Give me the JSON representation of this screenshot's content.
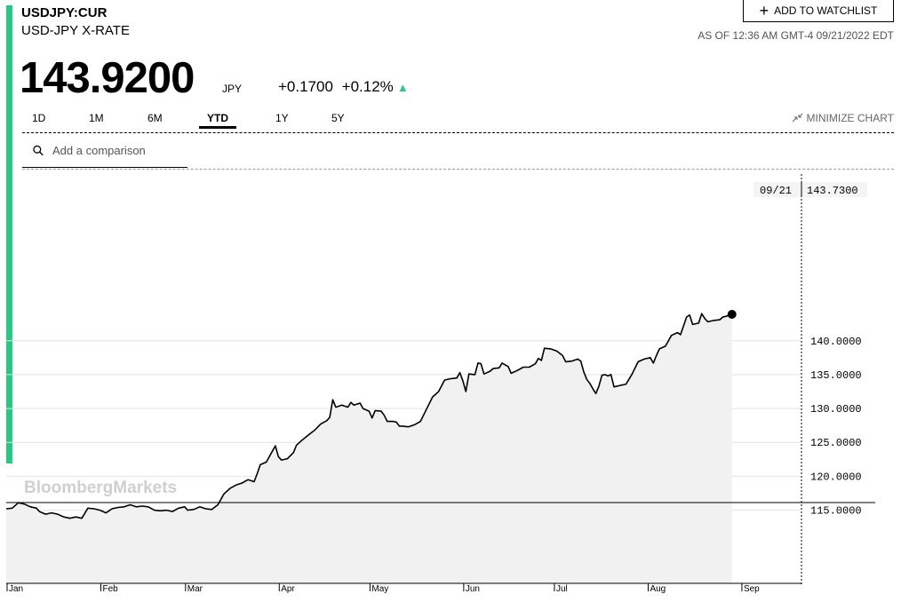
{
  "header": {
    "ticker": "USDJPY:CUR",
    "subtitle": "USD-JPY X-RATE",
    "watchlist_label": "ADD TO WATCHLIST",
    "as_of": "AS OF 12:36 AM GMT-4 09/21/2022 EDT",
    "price": "143.9200",
    "currency": "JPY",
    "change": "+0.1700",
    "change_pct": "+0.12%",
    "up_color": "#2ac686"
  },
  "tabs": [
    {
      "label": "1D"
    },
    {
      "label": "1M"
    },
    {
      "label": "6M"
    },
    {
      "label": "YTD",
      "active": true
    },
    {
      "label": "1Y"
    },
    {
      "label": "5Y"
    }
  ],
  "minimize_label": "MINIMIZE CHART",
  "search": {
    "placeholder": "Add a comparison"
  },
  "chart_data": {
    "type": "area",
    "title": "",
    "watermark": "BloombergMarkets",
    "y_ticks": [
      "115.0000",
      "120.0000",
      "125.0000",
      "130.0000",
      "135.0000",
      "140.0000"
    ],
    "ylim": [
      104.2,
      164.6
    ],
    "xlim": [
      0,
      263
    ],
    "month_labels": [
      {
        "label": "Jan",
        "day": 0
      },
      {
        "label": "Feb",
        "day": 31
      },
      {
        "label": "Mar",
        "day": 59
      },
      {
        "label": "Apr",
        "day": 90
      },
      {
        "label": "May",
        "day": 120
      },
      {
        "label": "Jun",
        "day": 151
      },
      {
        "label": "Jul",
        "day": 181
      },
      {
        "label": "Aug",
        "day": 212
      },
      {
        "label": "Sep",
        "day": 243
      }
    ],
    "tooltip": {
      "date": "09/21",
      "value": "143.7300"
    },
    "grid": true,
    "series": [
      {
        "values": [
          [
            0,
            115.2
          ],
          [
            2,
            115.3
          ],
          [
            4,
            116.1
          ],
          [
            6,
            115.9
          ],
          [
            8,
            115.5
          ],
          [
            10,
            115.3
          ],
          [
            11,
            114.8
          ],
          [
            13,
            114.4
          ],
          [
            15,
            114.6
          ],
          [
            17,
            114.4
          ],
          [
            19,
            114.0
          ],
          [
            21,
            113.8
          ],
          [
            23,
            114.0
          ],
          [
            25,
            113.8
          ],
          [
            27,
            115.3
          ],
          [
            29,
            115.2
          ],
          [
            31,
            115.0
          ],
          [
            33,
            114.6
          ],
          [
            35,
            115.2
          ],
          [
            37,
            115.4
          ],
          [
            39,
            115.5
          ],
          [
            41,
            115.8
          ],
          [
            43,
            115.5
          ],
          [
            45,
            115.6
          ],
          [
            47,
            115.5
          ],
          [
            49,
            115.0
          ],
          [
            51,
            114.9
          ],
          [
            53,
            115.0
          ],
          [
            55,
            114.8
          ],
          [
            57,
            115.3
          ],
          [
            59,
            115.5
          ],
          [
            60,
            115.0
          ],
          [
            62,
            115.1
          ],
          [
            64,
            115.5
          ],
          [
            66,
            115.2
          ],
          [
            68,
            115.1
          ],
          [
            70,
            115.8
          ],
          [
            72,
            117.4
          ],
          [
            74,
            118.2
          ],
          [
            76,
            118.7
          ],
          [
            78,
            119.0
          ],
          [
            80,
            119.5
          ],
          [
            82,
            119.2
          ],
          [
            83,
            120.4
          ],
          [
            84,
            121.7
          ],
          [
            86,
            122.1
          ],
          [
            88,
            123.7
          ],
          [
            89,
            124.5
          ],
          [
            90,
            122.9
          ],
          [
            91,
            122.4
          ],
          [
            93,
            122.6
          ],
          [
            95,
            123.5
          ],
          [
            96,
            124.6
          ],
          [
            98,
            125.4
          ],
          [
            100,
            126.1
          ],
          [
            102,
            126.8
          ],
          [
            104,
            127.7
          ],
          [
            106,
            128.2
          ],
          [
            107,
            128.7
          ],
          [
            108,
            131.3
          ],
          [
            109,
            130.2
          ],
          [
            111,
            130.5
          ],
          [
            113,
            130.2
          ],
          [
            114,
            130.9
          ],
          [
            115,
            130.5
          ],
          [
            117,
            130.8
          ],
          [
            118,
            130.0
          ],
          [
            120,
            129.6
          ],
          [
            121,
            128.6
          ],
          [
            122,
            129.7
          ],
          [
            124,
            129.6
          ],
          [
            125,
            129.0
          ],
          [
            126,
            128.1
          ],
          [
            128,
            128.1
          ],
          [
            129,
            128.0
          ],
          [
            130,
            127.4
          ],
          [
            131,
            127.4
          ],
          [
            133,
            127.3
          ],
          [
            135,
            127.6
          ],
          [
            137,
            128.1
          ],
          [
            139,
            129.9
          ],
          [
            141,
            131.7
          ],
          [
            143,
            132.5
          ],
          [
            145,
            134.2
          ],
          [
            147,
            134.4
          ],
          [
            149,
            134.5
          ],
          [
            150,
            135.3
          ],
          [
            151,
            134.1
          ],
          [
            152,
            132.5
          ],
          [
            153,
            135.1
          ],
          [
            155,
            135.0
          ],
          [
            156,
            136.7
          ],
          [
            157,
            136.6
          ],
          [
            158,
            135.1
          ],
          [
            160,
            135.5
          ],
          [
            161,
            135.9
          ],
          [
            163,
            136.0
          ],
          [
            164,
            136.7
          ],
          [
            166,
            136.2
          ],
          [
            167,
            135.2
          ],
          [
            169,
            135.6
          ],
          [
            171,
            136.1
          ],
          [
            173,
            136.1
          ],
          [
            175,
            136.6
          ],
          [
            176,
            137.4
          ],
          [
            177,
            137.1
          ],
          [
            178,
            138.9
          ],
          [
            180,
            138.8
          ],
          [
            182,
            138.5
          ],
          [
            184,
            137.8
          ],
          [
            185,
            136.9
          ],
          [
            187,
            137.0
          ],
          [
            189,
            137.3
          ],
          [
            190,
            137.0
          ],
          [
            191,
            135.4
          ],
          [
            192,
            134.3
          ],
          [
            193,
            133.7
          ],
          [
            194,
            132.9
          ],
          [
            195,
            132.2
          ],
          [
            196,
            133.3
          ],
          [
            197,
            134.9
          ],
          [
            198,
            135.0
          ],
          [
            199,
            134.8
          ],
          [
            200,
            135.0
          ],
          [
            201,
            133.2
          ],
          [
            203,
            133.4
          ],
          [
            205,
            133.6
          ],
          [
            207,
            135.1
          ],
          [
            209,
            136.9
          ],
          [
            211,
            137.3
          ],
          [
            213,
            137.5
          ],
          [
            214,
            136.7
          ],
          [
            215,
            137.8
          ],
          [
            216,
            138.8
          ],
          [
            218,
            139.2
          ],
          [
            220,
            140.8
          ],
          [
            222,
            141.2
          ],
          [
            223,
            140.9
          ],
          [
            224,
            142.2
          ],
          [
            225,
            143.5
          ],
          [
            226,
            143.8
          ],
          [
            227,
            142.4
          ],
          [
            229,
            142.6
          ],
          [
            230,
            144.0
          ],
          [
            231,
            143.3
          ],
          [
            232,
            142.8
          ],
          [
            234,
            143.0
          ],
          [
            236,
            143.1
          ],
          [
            237,
            143.5
          ],
          [
            238,
            143.6
          ],
          [
            240,
            143.9
          ]
        ]
      }
    ]
  }
}
